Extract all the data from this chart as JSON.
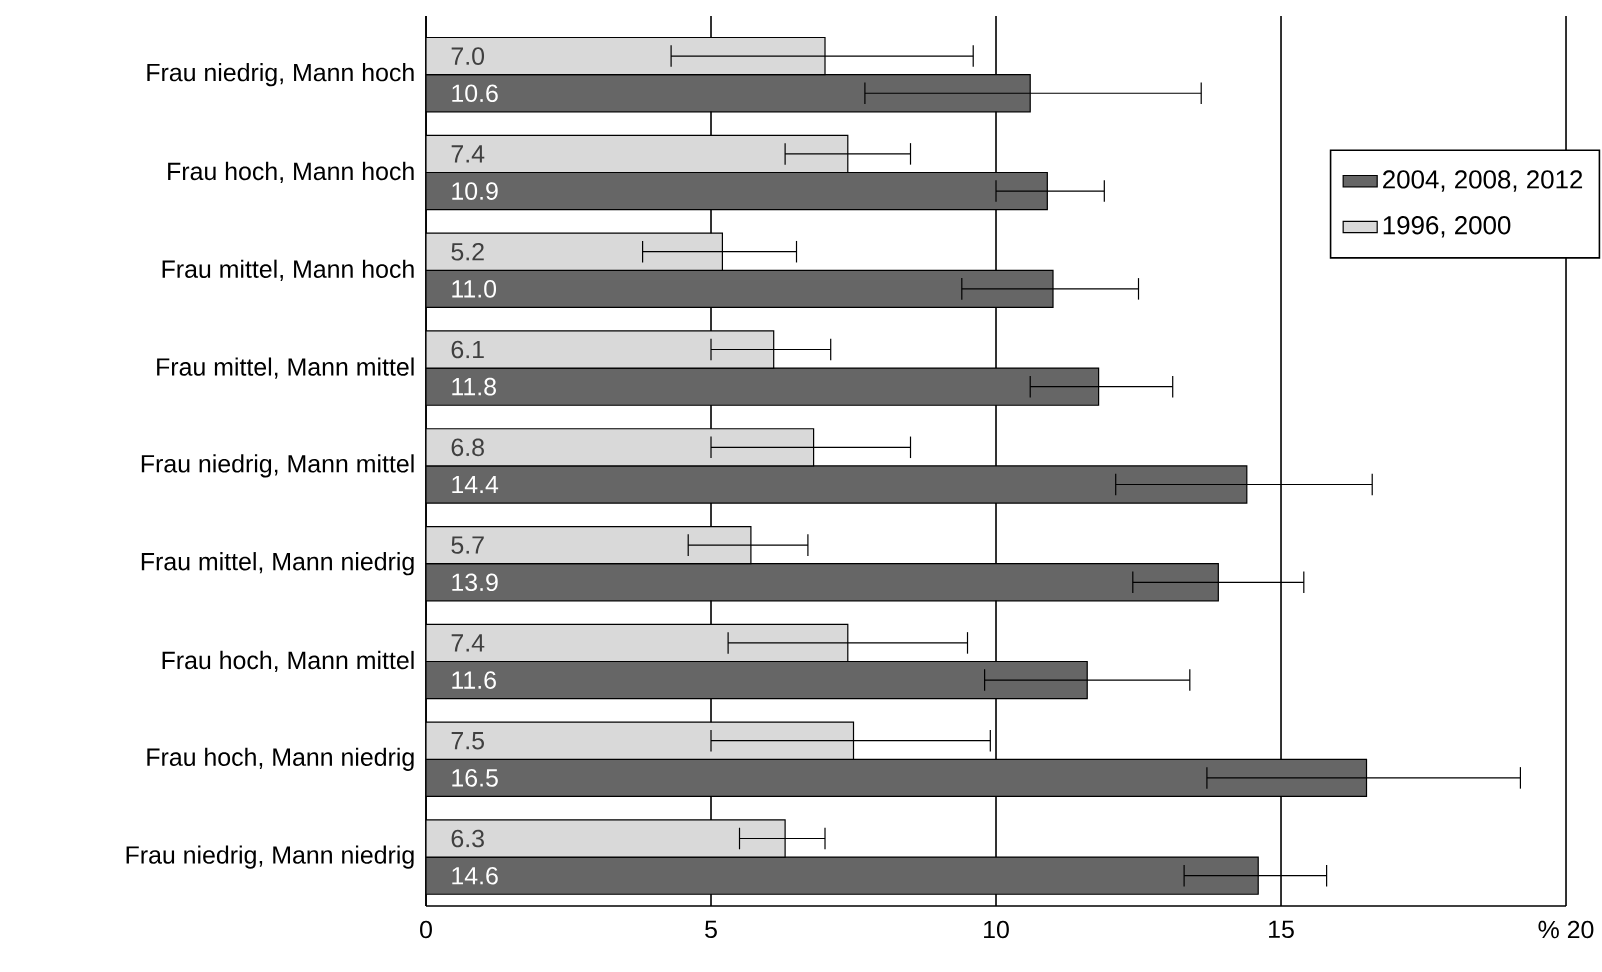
{
  "chart_data": {
    "type": "bar",
    "orientation": "horizontal",
    "categories": [
      "Frau niedrig, Mann hoch",
      "Frau hoch, Mann hoch",
      "Frau mittel, Mann hoch",
      "Frau mittel, Mann mittel",
      "Frau niedrig, Mann mittel",
      "Frau mittel, Mann niedrig",
      "Frau hoch, Mann mittel",
      "Frau hoch, Mann niedrig",
      "Frau niedrig, Mann niedrig"
    ],
    "series": [
      {
        "name": "2004, 2008, 2012",
        "color": "#666666",
        "values": [
          10.6,
          10.9,
          11.0,
          11.8,
          14.4,
          13.9,
          11.6,
          16.5,
          14.6
        ],
        "value_labels": [
          "10.6",
          "10.9",
          "11.0",
          "11.8",
          "14.4",
          "13.9",
          "11.6",
          "16.5",
          "14.6"
        ],
        "errors": [
          [
            7.7,
            13.6
          ],
          [
            10.0,
            11.9
          ],
          [
            9.4,
            12.5
          ],
          [
            10.6,
            13.1
          ],
          [
            12.1,
            16.6
          ],
          [
            12.4,
            15.4
          ],
          [
            9.8,
            13.4
          ],
          [
            13.7,
            19.2
          ],
          [
            13.3,
            15.8
          ]
        ]
      },
      {
        "name": "1996, 2000",
        "color": "#d9d9d9",
        "values": [
          7.0,
          7.4,
          5.2,
          6.1,
          6.8,
          5.7,
          7.4,
          7.5,
          6.3
        ],
        "value_labels": [
          "7.0",
          "7.4",
          "5.2",
          "6.1",
          "6.8",
          "5.7",
          "7.4",
          "7.5",
          "6.3"
        ],
        "errors": [
          [
            4.3,
            9.6
          ],
          [
            6.3,
            8.5
          ],
          [
            3.8,
            6.5
          ],
          [
            5.0,
            7.1
          ],
          [
            5.0,
            8.5
          ],
          [
            4.6,
            6.7
          ],
          [
            5.3,
            9.5
          ],
          [
            5.0,
            9.9
          ],
          [
            5.5,
            7.0
          ]
        ]
      }
    ],
    "xlim": [
      0,
      20
    ],
    "xticks": [
      0,
      5,
      10,
      15,
      {
        "value": 20,
        "label": "% 20"
      }
    ],
    "grid": "x",
    "legend": "right"
  }
}
